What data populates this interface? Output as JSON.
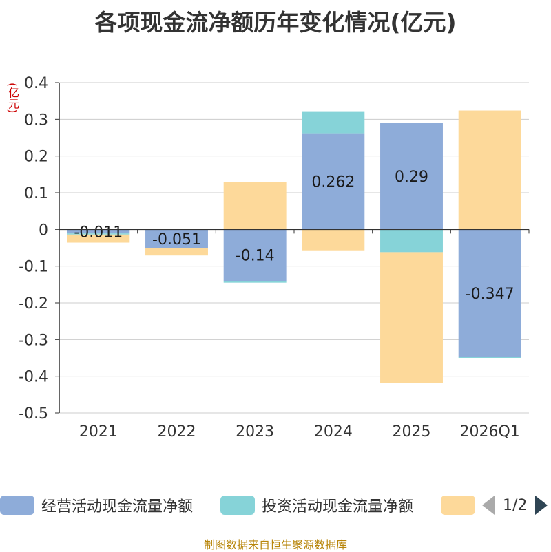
{
  "colors": {
    "operating": "#8eacd9",
    "investing": "#86d3d8",
    "financing": "#fdd99a",
    "axis": "#333333",
    "grid": "#cccccc"
  },
  "legend": {
    "pager_text": "1/2"
  },
  "source_text": "制图数据来自恒生聚源数据库",
  "chart_data": {
    "type": "bar",
    "stacked": true,
    "title": "各项现金流净额历年变化情况(亿元)",
    "ylabel": "(亿元)",
    "xlabel": "",
    "ylim": [
      -0.5,
      0.4
    ],
    "yticks": [
      0.4,
      0.3,
      0.2,
      0.1,
      0,
      -0.1,
      -0.2,
      -0.3,
      -0.4,
      -0.5
    ],
    "ytick_labels": [
      "0.4",
      "0.3",
      "0.2",
      "0.1",
      "0",
      "-0.1",
      "-0.2",
      "-0.3",
      "-0.4",
      "-0.5"
    ],
    "grid": true,
    "categories": [
      "2021",
      "2022",
      "2023",
      "2024",
      "2025",
      "2026Q1"
    ],
    "series": [
      {
        "name": "经营活动现金流量净额",
        "color_key": "operating",
        "values": [
          -0.011,
          -0.051,
          -0.14,
          0.262,
          0.29,
          -0.347
        ],
        "labels": [
          "-0.011",
          "-0.051",
          "-0.14",
          "0.262",
          "0.29",
          "-0.347"
        ]
      },
      {
        "name": "投资活动现金流量净额",
        "color_key": "investing",
        "values": [
          -0.003,
          0,
          -0.005,
          0.06,
          -0.062,
          -0.003
        ]
      },
      {
        "name": "",
        "color_key": "financing",
        "values": [
          -0.022,
          -0.02,
          0.13,
          -0.057,
          -0.357,
          0.324
        ]
      }
    ]
  }
}
